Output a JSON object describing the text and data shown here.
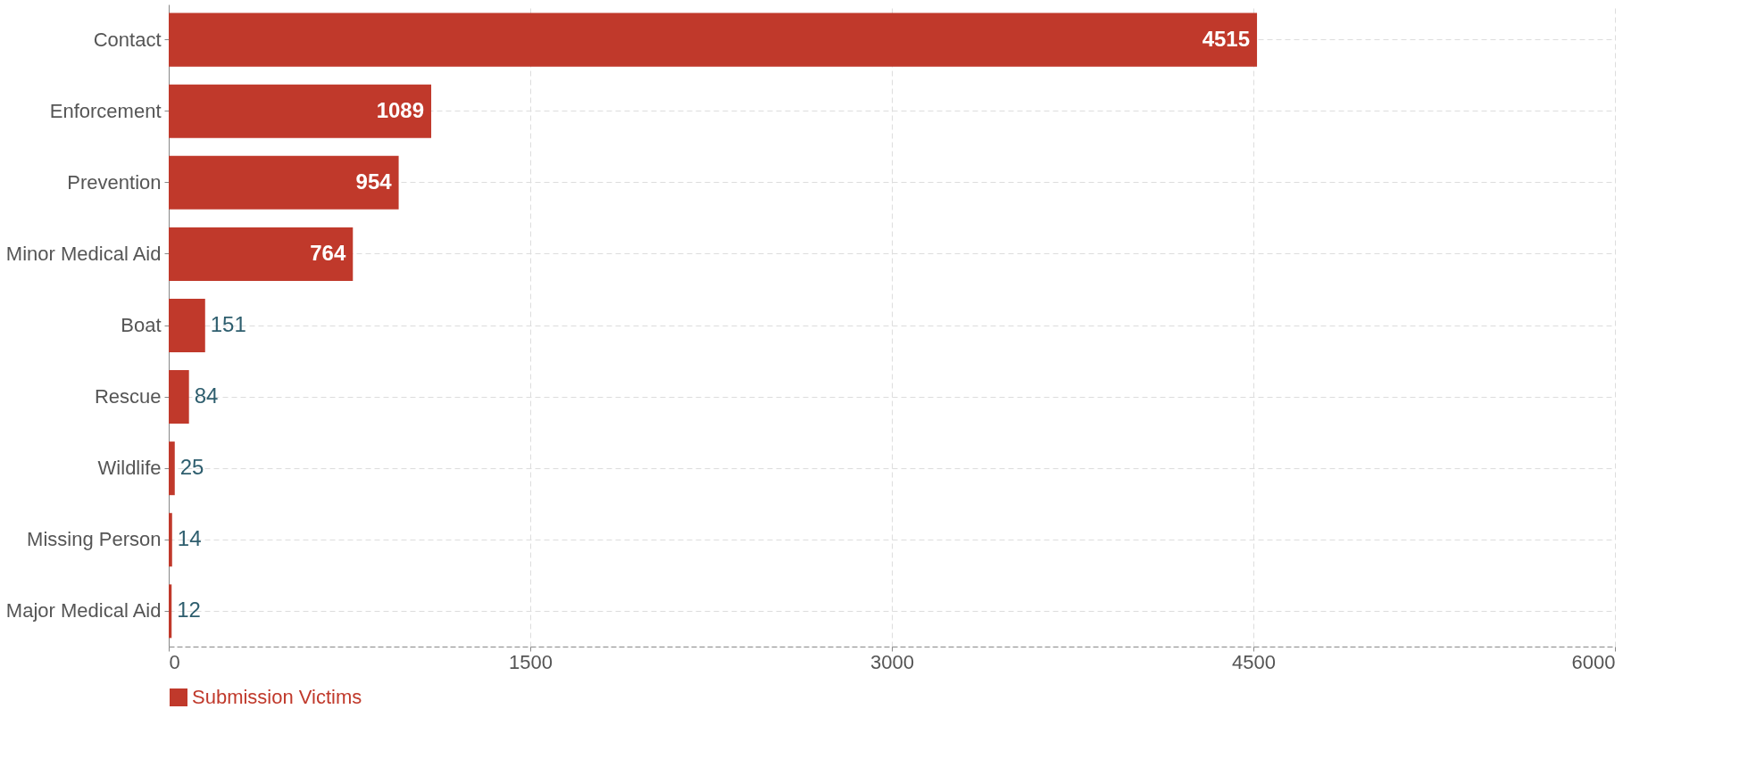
{
  "chart_data": {
    "type": "bar",
    "orientation": "horizontal",
    "categories": [
      "Contact",
      "Enforcement",
      "Prevention",
      "Minor Medical Aid",
      "Boat",
      "Rescue",
      "Wildlife",
      "Missing Person",
      "Major Medical Aid"
    ],
    "series": [
      {
        "name": "Submission Victims",
        "color": "#c0392b",
        "values": [
          4515,
          1089,
          954,
          764,
          151,
          84,
          25,
          14,
          12
        ]
      }
    ],
    "xlim": [
      0,
      6000
    ],
    "xticks": [
      0,
      1500,
      3000,
      4500,
      6000
    ],
    "grid": true,
    "legend": "bottom",
    "data_labels": true
  }
}
